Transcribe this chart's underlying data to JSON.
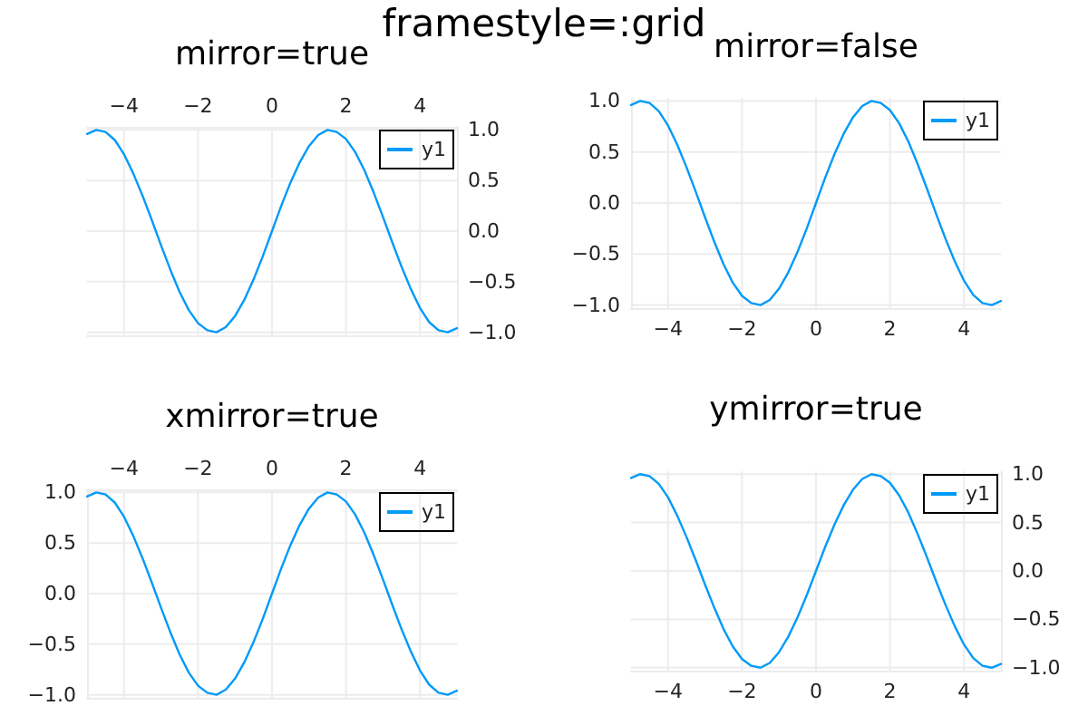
{
  "chart_data": [
    {
      "type": "line",
      "title": "mirror=true",
      "annotations": [
        "framestyle=:grid"
      ],
      "x": [
        -5,
        -4.75,
        -4.5,
        -4.25,
        -4,
        -3.75,
        -3.5,
        -3.25,
        -3,
        -2.75,
        -2.5,
        -2.25,
        -2,
        -1.75,
        -1.5,
        -1.25,
        -1,
        -0.75,
        -0.5,
        -0.25,
        0,
        0.25,
        0.5,
        0.75,
        1,
        1.25,
        1.5,
        1.75,
        2,
        2.25,
        2.5,
        2.75,
        3,
        3.25,
        3.5,
        3.75,
        4,
        4.25,
        4.5,
        4.75,
        5
      ],
      "series": [
        {
          "name": "y1",
          "color": "#009af9",
          "axis": "y2",
          "values": [
            0.96,
            1.0,
            0.98,
            0.9,
            0.76,
            0.57,
            0.35,
            0.11,
            -0.14,
            -0.38,
            -0.6,
            -0.78,
            -0.91,
            -0.98,
            -1.0,
            -0.95,
            -0.84,
            -0.68,
            -0.48,
            -0.25,
            0,
            0.25,
            0.48,
            0.68,
            0.84,
            0.95,
            1.0,
            0.98,
            0.91,
            0.78,
            0.6,
            0.38,
            0.14,
            -0.11,
            -0.35,
            -0.57,
            -0.76,
            -0.9,
            -0.98,
            -1.0,
            -0.96
          ]
        }
      ],
      "xlim": [
        -5,
        5
      ],
      "x2lim": [
        -5,
        5
      ],
      "x2ticks": [
        -4,
        -2,
        0,
        2,
        4
      ],
      "y2lim": [
        -1.03,
        1.03
      ],
      "y2ticks": [
        {
          "value": -1,
          "label": "−1.0"
        },
        {
          "value": -0.5,
          "label": "−0.5"
        },
        {
          "value": 0,
          "label": "0.0"
        },
        {
          "value": 0.5,
          "label": "0.5"
        },
        {
          "value": 1,
          "label": "1.0"
        }
      ],
      "tick_labels": false,
      "grid": true,
      "legend": "top right",
      "line_style": "solid",
      "marker": "none"
    },
    {
      "type": "line",
      "title": "mirror=false",
      "x": [
        -5,
        -4.75,
        -4.5,
        -4.25,
        -4,
        -3.75,
        -3.5,
        -3.25,
        -3,
        -2.75,
        -2.5,
        -2.25,
        -2,
        -1.75,
        -1.5,
        -1.25,
        -1,
        -0.75,
        -0.5,
        -0.25,
        0,
        0.25,
        0.5,
        0.75,
        1,
        1.25,
        1.5,
        1.75,
        2,
        2.25,
        2.5,
        2.75,
        3,
        3.25,
        3.5,
        3.75,
        4,
        4.25,
        4.5,
        4.75,
        5
      ],
      "series": [
        {
          "name": "y1",
          "color": "#009af9",
          "values": [
            0.96,
            1.0,
            0.98,
            0.9,
            0.76,
            0.57,
            0.35,
            0.11,
            -0.14,
            -0.38,
            -0.6,
            -0.78,
            -0.91,
            -0.98,
            -1.0,
            -0.95,
            -0.84,
            -0.68,
            -0.48,
            -0.25,
            0,
            0.25,
            0.48,
            0.68,
            0.84,
            0.95,
            1.0,
            0.98,
            0.91,
            0.78,
            0.6,
            0.38,
            0.14,
            -0.11,
            -0.35,
            -0.57,
            -0.76,
            -0.9,
            -0.98,
            -1.0,
            -0.96
          ]
        }
      ],
      "xlim": [
        -5,
        5
      ],
      "xticks": [
        -4,
        -2,
        0,
        2,
        4
      ],
      "ylim": [
        -1.03,
        1.03
      ],
      "yticks": [
        {
          "value": -1,
          "label": "−1.0"
        },
        {
          "value": -0.5,
          "label": "−0.5"
        },
        {
          "value": 0,
          "label": "0.0"
        },
        {
          "value": 0.5,
          "label": "0.5"
        },
        {
          "value": 1,
          "label": "1.0"
        }
      ],
      "grid": true,
      "legend": "top right",
      "line_style": "solid",
      "marker": "none"
    },
    {
      "type": "line",
      "title": "xmirror=true",
      "x": [
        -5,
        -4.75,
        -4.5,
        -4.25,
        -4,
        -3.75,
        -3.5,
        -3.25,
        -3,
        -2.75,
        -2.5,
        -2.25,
        -2,
        -1.75,
        -1.5,
        -1.25,
        -1,
        -0.75,
        -0.5,
        -0.25,
        0,
        0.25,
        0.5,
        0.75,
        1,
        1.25,
        1.5,
        1.75,
        2,
        2.25,
        2.5,
        2.75,
        3,
        3.25,
        3.5,
        3.75,
        4,
        4.25,
        4.5,
        4.75,
        5
      ],
      "series": [
        {
          "name": "y1",
          "color": "#009af9",
          "values": [
            0.96,
            1.0,
            0.98,
            0.9,
            0.76,
            0.57,
            0.35,
            0.11,
            -0.14,
            -0.38,
            -0.6,
            -0.78,
            -0.91,
            -0.98,
            -1.0,
            -0.95,
            -0.84,
            -0.68,
            -0.48,
            -0.25,
            0,
            0.25,
            0.48,
            0.68,
            0.84,
            0.95,
            1.0,
            0.98,
            0.91,
            0.78,
            0.6,
            0.38,
            0.14,
            -0.11,
            -0.35,
            -0.57,
            -0.76,
            -0.9,
            -0.98,
            -1.0,
            -0.96
          ]
        }
      ],
      "xlim": [
        -5,
        5
      ],
      "x2lim": [
        -5,
        5
      ],
      "x2ticks": [
        -4,
        -2,
        0,
        2,
        4
      ],
      "ylim": [
        -1.03,
        1.03
      ],
      "yticks": [
        {
          "value": -1,
          "label": "−1.0"
        },
        {
          "value": -0.5,
          "label": "−0.5"
        },
        {
          "value": 0,
          "label": "0.0"
        },
        {
          "value": 0.5,
          "label": "0.5"
        },
        {
          "value": 1,
          "label": "1.0"
        }
      ],
      "tick_labels": "y",
      "grid": true,
      "legend": "top right",
      "line_style": "solid",
      "marker": "none"
    },
    {
      "type": "line",
      "title": "ymirror=true",
      "x": [
        -5,
        -4.75,
        -4.5,
        -4.25,
        -4,
        -3.75,
        -3.5,
        -3.25,
        -3,
        -2.75,
        -2.5,
        -2.25,
        -2,
        -1.75,
        -1.5,
        -1.25,
        -1,
        -0.75,
        -0.5,
        -0.25,
        0,
        0.25,
        0.5,
        0.75,
        1,
        1.25,
        1.5,
        1.75,
        2,
        2.25,
        2.5,
        2.75,
        3,
        3.25,
        3.5,
        3.75,
        4,
        4.25,
        4.5,
        4.75,
        5
      ],
      "series": [
        {
          "name": "y1",
          "color": "#009af9",
          "axis": "y2",
          "values": [
            0.96,
            1.0,
            0.98,
            0.9,
            0.76,
            0.57,
            0.35,
            0.11,
            -0.14,
            -0.38,
            -0.6,
            -0.78,
            -0.91,
            -0.98,
            -1.0,
            -0.95,
            -0.84,
            -0.68,
            -0.48,
            -0.25,
            0,
            0.25,
            0.48,
            0.68,
            0.84,
            0.95,
            1.0,
            0.98,
            0.91,
            0.78,
            0.6,
            0.38,
            0.14,
            -0.11,
            -0.35,
            -0.57,
            -0.76,
            -0.9,
            -0.98,
            -1.0,
            -0.96
          ]
        }
      ],
      "xlim": [
        -5,
        5
      ],
      "xticks": [
        -4,
        -2,
        0,
        2,
        4
      ],
      "y2lim": [
        -1.03,
        1.03
      ],
      "y2ticks": [
        {
          "value": -1,
          "label": "−1.0"
        },
        {
          "value": -0.5,
          "label": "−0.5"
        },
        {
          "value": 0,
          "label": "0.0"
        },
        {
          "value": 0.5,
          "label": "0.5"
        },
        {
          "value": 1,
          "label": "1.0"
        }
      ],
      "grid": true,
      "legend": "top right",
      "line_style": "solid",
      "marker": "none"
    }
  ]
}
